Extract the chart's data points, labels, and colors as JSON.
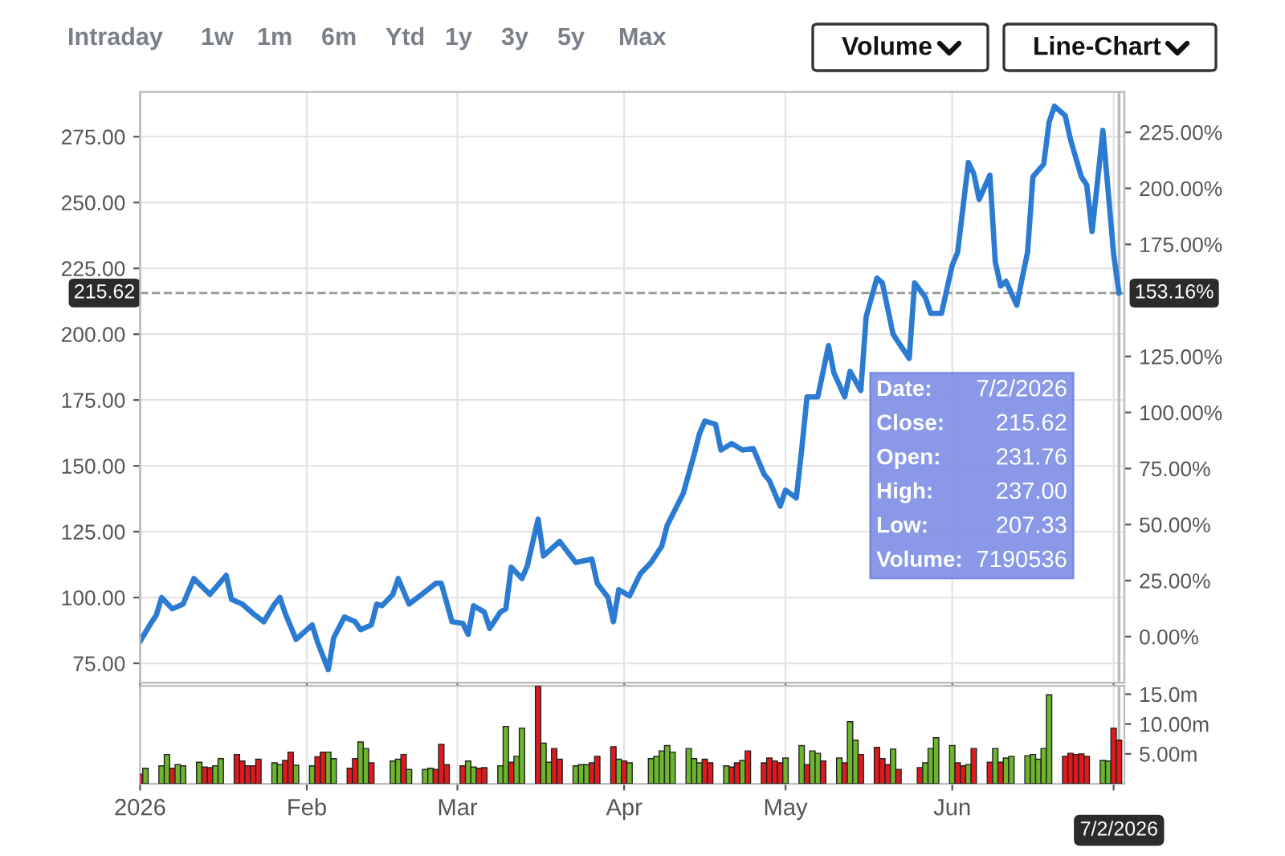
{
  "chart_data": [
    {
      "type": "other",
      "annotations": [
        "Intraday",
        "1w",
        "1m",
        "6m",
        "Ytd",
        "1y",
        "3y",
        "5y",
        "Max",
        "Volume",
        "Line-Chart"
      ]
    },
    {
      "type": "line",
      "color": "#2c7bd3",
      "x": [
        "2026-01-01",
        "2026-01-03",
        "2026-01-04",
        "2026-01-05",
        "2026-01-07",
        "2026-01-09",
        "2026-01-11",
        "2026-01-14",
        "2026-01-17",
        "2026-01-18",
        "2026-01-20",
        "2026-01-22",
        "2026-01-24",
        "2026-01-26",
        "2026-01-27",
        "2026-01-28",
        "2026-01-30",
        "2026-02-02",
        "2026-02-03",
        "2026-02-05",
        "2026-02-06",
        "2026-02-08",
        "2026-02-10",
        "2026-02-11",
        "2026-02-13",
        "2026-02-14",
        "2026-02-15",
        "2026-02-17",
        "2026-02-18",
        "2026-02-20",
        "2026-02-22",
        "2026-02-25",
        "2026-02-26",
        "2026-02-28",
        "2026-03-02",
        "2026-03-03",
        "2026-03-04",
        "2026-03-06",
        "2026-03-07",
        "2026-03-09",
        "2026-03-10",
        "2026-03-11",
        "2026-03-13",
        "2026-03-14",
        "2026-03-16",
        "2026-03-17",
        "2026-03-20",
        "2026-03-23",
        "2026-03-26",
        "2026-03-27",
        "2026-03-29",
        "2026-03-30",
        "2026-03-31",
        "2026-04-02",
        "2026-04-04",
        "2026-04-06",
        "2026-04-08",
        "2026-04-09",
        "2026-04-12",
        "2026-04-14",
        "2026-04-15",
        "2026-04-16",
        "2026-04-18",
        "2026-04-19",
        "2026-04-21",
        "2026-04-23",
        "2026-04-25",
        "2026-04-27",
        "2026-04-28",
        "2026-04-30",
        "2026-05-01",
        "2026-05-03",
        "2026-05-04",
        "2026-05-05",
        "2026-05-07",
        "2026-05-09",
        "2026-05-10",
        "2026-05-12",
        "2026-05-13",
        "2026-05-15",
        "2026-05-16",
        "2026-05-18",
        "2026-05-19",
        "2026-05-21",
        "2026-05-22",
        "2026-05-24",
        "2026-05-25",
        "2026-05-27",
        "2026-05-28",
        "2026-05-30",
        "2026-06-01",
        "2026-06-02",
        "2026-06-04",
        "2026-06-05",
        "2026-06-06",
        "2026-06-08",
        "2026-06-09",
        "2026-06-10",
        "2026-06-11",
        "2026-06-13",
        "2026-06-14",
        "2026-06-15",
        "2026-06-16",
        "2026-06-18",
        "2026-06-19",
        "2026-06-20",
        "2026-06-22",
        "2026-06-23",
        "2026-06-25",
        "2026-06-26",
        "2026-06-27",
        "2026-06-28",
        "2026-06-29",
        "2026-07-01",
        "2026-07-02"
      ],
      "values": [
        83.3,
        90.2,
        93.2,
        100,
        95.7,
        97.5,
        107.2,
        101.2,
        108.4,
        99.3,
        97.5,
        93.9,
        90.8,
        97.5,
        100,
        93.9,
        84.1,
        89.6,
        83,
        72.6,
        84.7,
        92.6,
        90.8,
        87.8,
        89.6,
        97.5,
        96.9,
        101.2,
        107.2,
        97.5,
        100.6,
        105.4,
        105.4,
        90.8,
        90.2,
        86,
        96.9,
        94.5,
        88.3,
        94.5,
        95.7,
        111.5,
        107.2,
        112.1,
        129.8,
        115.8,
        121.3,
        113.3,
        114.6,
        105.4,
        100,
        90.8,
        103,
        100.6,
        109,
        113.3,
        119.5,
        127.4,
        139.6,
        154.2,
        162.2,
        167,
        165.8,
        156,
        158.5,
        156,
        156.6,
        146.9,
        144.4,
        134.7,
        140.8,
        137.8,
        156,
        176.2,
        176.2,
        195.7,
        185.3,
        176.2,
        185.9,
        178.6,
        206.7,
        221.3,
        219.5,
        200,
        196.9,
        190.8,
        219.5,
        214,
        207.9,
        207.9,
        226.2,
        231.1,
        265.2,
        261,
        251.2,
        260.4,
        227.4,
        218.3,
        220.1,
        211,
        221.3,
        231.1,
        259.8,
        264.6,
        280.5,
        286.6,
        283,
        273.8,
        259.8,
        256.7,
        239,
        257.9,
        277.4,
        230.5,
        215.6
      ],
      "xlim": [
        "2026-01-01",
        "2026-07-03"
      ],
      "xticks": [
        "2026-01-01",
        "2026-02-01",
        "2026-03-01",
        "2026-04-01",
        "2026-05-01",
        "2026-06-01",
        "2026-07-01"
      ],
      "ylim": [
        67.7,
        292
      ],
      "yticks": [
        {
          "value": 75,
          "label": "75.00"
        },
        {
          "value": 100,
          "label": "100.00"
        },
        {
          "value": 125,
          "label": "125.00"
        },
        {
          "value": 150,
          "label": "150.00"
        },
        {
          "value": 175,
          "label": "175.00"
        },
        {
          "value": 200,
          "label": "200.00"
        },
        {
          "value": 225,
          "label": "225.00"
        },
        {
          "value": 250,
          "label": "250.00"
        },
        {
          "value": 275,
          "label": "275.00"
        }
      ],
      "y2lim": [
        -20.5,
        243
      ],
      "y2ticks": [
        {
          "value": 0,
          "label": "0.00%"
        },
        {
          "value": 25,
          "label": "25.00%"
        },
        {
          "value": 50,
          "label": "50.00%"
        },
        {
          "value": 75,
          "label": "75.00%"
        },
        {
          "value": 100,
          "label": "100.00%"
        },
        {
          "value": 125,
          "label": "125.00%"
        },
        {
          "value": 175,
          "label": "175.00%"
        },
        {
          "value": 200,
          "label": "200.00%"
        },
        {
          "value": 225,
          "label": "225.00%"
        }
      ],
      "ref_lines": [
        {
          "axis": "y",
          "value": 215.62,
          "label": "215.62",
          "color": "#999999",
          "line_style": "dashed"
        },
        {
          "axis": "x",
          "value": "2026-07-02",
          "color": "#bbbbbb"
        }
      ],
      "annotations": [
        {
          "text": "153.16%",
          "x": "2026-07-02",
          "y": 215.6
        },
        "Date:",
        "7/2/2026",
        "Close:",
        "215.62",
        "Open:",
        "231.76",
        "High:",
        "237.00",
        "Low:",
        "207.33",
        "Volume:",
        "7190536"
      ],
      "grid": true,
      "tick_labels": "y"
    },
    {
      "type": "bar",
      "x": [
        "2026-01-01",
        "2026-01-02",
        "2026-01-05",
        "2026-01-06",
        "2026-01-07",
        "2026-01-08",
        "2026-01-09",
        "2026-01-12",
        "2026-01-13",
        "2026-01-14",
        "2026-01-15",
        "2026-01-16",
        "2026-01-19",
        "2026-01-20",
        "2026-01-21",
        "2026-01-22",
        "2026-01-23",
        "2026-01-26",
        "2026-01-27",
        "2026-01-28",
        "2026-01-29",
        "2026-01-30",
        "2026-02-02",
        "2026-02-03",
        "2026-02-04",
        "2026-02-05",
        "2026-02-06",
        "2026-02-09",
        "2026-02-10",
        "2026-02-11",
        "2026-02-12",
        "2026-02-13",
        "2026-02-17",
        "2026-02-18",
        "2026-02-19",
        "2026-02-20",
        "2026-02-23",
        "2026-02-24",
        "2026-02-25",
        "2026-02-26",
        "2026-02-27",
        "2026-03-02",
        "2026-03-03",
        "2026-03-04",
        "2026-03-05",
        "2026-03-06",
        "2026-03-09",
        "2026-03-10",
        "2026-03-11",
        "2026-03-12",
        "2026-03-13",
        "2026-03-16",
        "2026-03-17",
        "2026-03-18",
        "2026-03-19",
        "2026-03-20",
        "2026-03-23",
        "2026-03-24",
        "2026-03-25",
        "2026-03-26",
        "2026-03-27",
        "2026-03-30",
        "2026-03-31",
        "2026-04-01",
        "2026-04-02",
        "2026-04-06",
        "2026-04-07",
        "2026-04-08",
        "2026-04-09",
        "2026-04-10",
        "2026-04-13",
        "2026-04-14",
        "2026-04-15",
        "2026-04-16",
        "2026-04-17",
        "2026-04-20",
        "2026-04-21",
        "2026-04-22",
        "2026-04-23",
        "2026-04-24",
        "2026-04-27",
        "2026-04-28",
        "2026-04-29",
        "2026-04-30",
        "2026-05-01",
        "2026-05-04",
        "2026-05-05",
        "2026-05-06",
        "2026-05-07",
        "2026-05-08",
        "2026-05-11",
        "2026-05-12",
        "2026-05-13",
        "2026-05-14",
        "2026-05-15",
        "2026-05-18",
        "2026-05-19",
        "2026-05-20",
        "2026-05-21",
        "2026-05-22",
        "2026-05-26",
        "2026-05-27",
        "2026-05-28",
        "2026-05-29",
        "2026-06-01",
        "2026-06-02",
        "2026-06-03",
        "2026-06-04",
        "2026-06-05",
        "2026-06-08",
        "2026-06-09",
        "2026-06-10",
        "2026-06-11",
        "2026-06-12",
        "2026-06-15",
        "2026-06-16",
        "2026-06-17",
        "2026-06-18",
        "2026-06-19",
        "2026-06-22",
        "2026-06-23",
        "2026-06-24",
        "2026-06-25",
        "2026-06-26",
        "2026-06-29",
        "2026-06-30",
        "2026-07-01",
        "2026-07-02"
      ],
      "values": [
        1.6,
        2.6,
        3.0,
        4.9,
        2.6,
        3.2,
        3.0,
        3.6,
        2.8,
        2.7,
        3.0,
        4.2,
        4.9,
        3.8,
        3.0,
        3.0,
        4.1,
        3.5,
        3.2,
        3.9,
        5.3,
        3.1,
        3.0,
        4.5,
        5.3,
        5.3,
        4.2,
        2.6,
        4.2,
        7.0,
        5.9,
        3.5,
        3.8,
        4.1,
        4.9,
        2.4,
        2.4,
        2.6,
        2.4,
        6.6,
        3.2,
        3.0,
        3.8,
        2.8,
        2.6,
        2.7,
        3.0,
        9.6,
        3.6,
        4.6,
        9.3,
        16.4,
        6.8,
        3.6,
        5.9,
        4.1,
        3.0,
        3.2,
        3.2,
        3.5,
        4.6,
        6.2,
        4.1,
        3.8,
        3.5,
        4.2,
        4.6,
        5.5,
        6.4,
        5.3,
        5.9,
        4.2,
        3.5,
        4.1,
        3.5,
        3.0,
        2.8,
        3.5,
        3.9,
        5.5,
        3.5,
        4.3,
        3.8,
        3.5,
        4.3,
        6.4,
        3.2,
        5.5,
        5.1,
        3.8,
        4.3,
        3.5,
        10.4,
        7.3,
        4.9,
        6.1,
        4.2,
        3.2,
        5.8,
        2.4,
        2.7,
        3.5,
        5.9,
        7.7,
        6.4,
        3.5,
        3.0,
        3.2,
        5.9,
        3.6,
        5.9,
        3.6,
        4.3,
        4.6,
        4.7,
        4.9,
        4.1,
        5.9,
        14.9,
        4.6,
        5.1,
        4.9,
        5.0,
        4.6,
        3.9,
        3.8,
        9.3,
        7.3
      ],
      "colors": [
        "#e0191c",
        "#6cb52d",
        "#6cb52d",
        "#6cb52d",
        "#e0191c",
        "#6cb52d",
        "#6cb52d",
        "#6cb52d",
        "#e0191c",
        "#e0191c",
        "#6cb52d",
        "#6cb52d",
        "#e0191c",
        "#e0191c",
        "#e0191c",
        "#e0191c",
        "#e0191c",
        "#6cb52d",
        "#6cb52d",
        "#e0191c",
        "#e0191c",
        "#6cb52d",
        "#6cb52d",
        "#e0191c",
        "#e0191c",
        "#6cb52d",
        "#6cb52d",
        "#e0191c",
        "#e0191c",
        "#6cb52d",
        "#6cb52d",
        "#e0191c",
        "#6cb52d",
        "#6cb52d",
        "#e0191c",
        "#6cb52d",
        "#6cb52d",
        "#6cb52d",
        "#e0191c",
        "#e0191c",
        "#e0191c",
        "#e0191c",
        "#6cb52d",
        "#6cb52d",
        "#e0191c",
        "#e0191c",
        "#6cb52d",
        "#6cb52d",
        "#e0191c",
        "#6cb52d",
        "#6cb52d",
        "#e0191c",
        "#6cb52d",
        "#6cb52d",
        "#e0191c",
        "#e0191c",
        "#6cb52d",
        "#6cb52d",
        "#6cb52d",
        "#e0191c",
        "#e0191c",
        "#e0191c",
        "#6cb52d",
        "#e0191c",
        "#6cb52d",
        "#6cb52d",
        "#6cb52d",
        "#6cb52d",
        "#6cb52d",
        "#6cb52d",
        "#6cb52d",
        "#6cb52d",
        "#6cb52d",
        "#e0191c",
        "#e0191c",
        "#6cb52d",
        "#e0191c",
        "#e0191c",
        "#6cb52d",
        "#e0191c",
        "#e0191c",
        "#e0191c",
        "#e0191c",
        "#e0191c",
        "#6cb52d",
        "#6cb52d",
        "#e0191c",
        "#6cb52d",
        "#6cb52d",
        "#e0191c",
        "#6cb52d",
        "#e0191c",
        "#6cb52d",
        "#6cb52d",
        "#e0191c",
        "#e0191c",
        "#e0191c",
        "#e0191c",
        "#6cb52d",
        "#e0191c",
        "#e0191c",
        "#6cb52d",
        "#6cb52d",
        "#6cb52d",
        "#6cb52d",
        "#e0191c",
        "#e0191c",
        "#6cb52d",
        "#e0191c",
        "#e0191c",
        "#6cb52d",
        "#e0191c",
        "#6cb52d",
        "#6cb52d",
        "#6cb52d",
        "#6cb52d",
        "#6cb52d",
        "#6cb52d",
        "#6cb52d",
        "#e0191c",
        "#e0191c",
        "#e0191c",
        "#e0191c",
        "#e0191c",
        "#6cb52d",
        "#6cb52d",
        "#e0191c",
        "#e0191c"
      ],
      "xlim": [
        "2026-01-01",
        "2026-07-03"
      ],
      "xticks": [
        {
          "value": "2026-01-01",
          "label": "2026"
        },
        {
          "value": "2026-02-01",
          "label": "Feb"
        },
        {
          "value": "2026-03-01",
          "label": "Mar"
        },
        {
          "value": "2026-04-01",
          "label": "Apr"
        },
        {
          "value": "2026-05-01",
          "label": "May"
        },
        {
          "value": "2026-06-01",
          "label": "Jun"
        },
        {
          "value": "2026-07-01",
          "label": null
        }
      ],
      "ylim": [
        0,
        16.4
      ],
      "yticks": [
        {
          "value": 5,
          "label": "5.00m"
        },
        {
          "value": 10,
          "label": "10.00m"
        },
        {
          "value": 15,
          "label": "15.0m"
        }
      ],
      "ref_lines": [
        {
          "axis": "x",
          "value": "2026-07-02",
          "label": "7/2/2026",
          "color": "#bbbbbb"
        }
      ],
      "grid": "x"
    }
  ]
}
